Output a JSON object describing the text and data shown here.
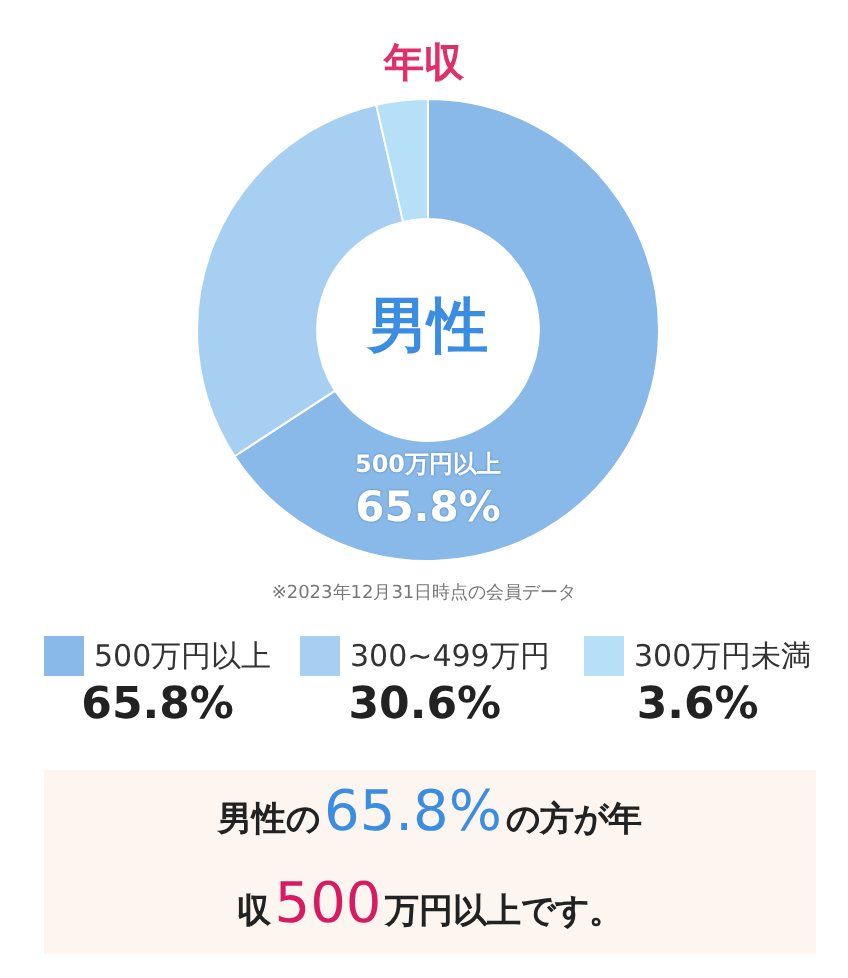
{
  "chart_data": {
    "type": "donut",
    "title": "年収",
    "categories": [
      "500万円以上",
      "300~499万円",
      "300万円未満"
    ],
    "values": [
      65.8,
      30.6,
      3.6
    ],
    "colors": [
      "#88b9e8",
      "#a6cff2",
      "#b5e0f8"
    ],
    "legend": "bottom",
    "value_labels": [
      "65.8%",
      "30.6%",
      "3.6%"
    ],
    "annotations": [
      "男性",
      "※2023年12月31日時点の会員データ",
      "男性の65.8%の方が年収500万円以上です。"
    ]
  }
}
